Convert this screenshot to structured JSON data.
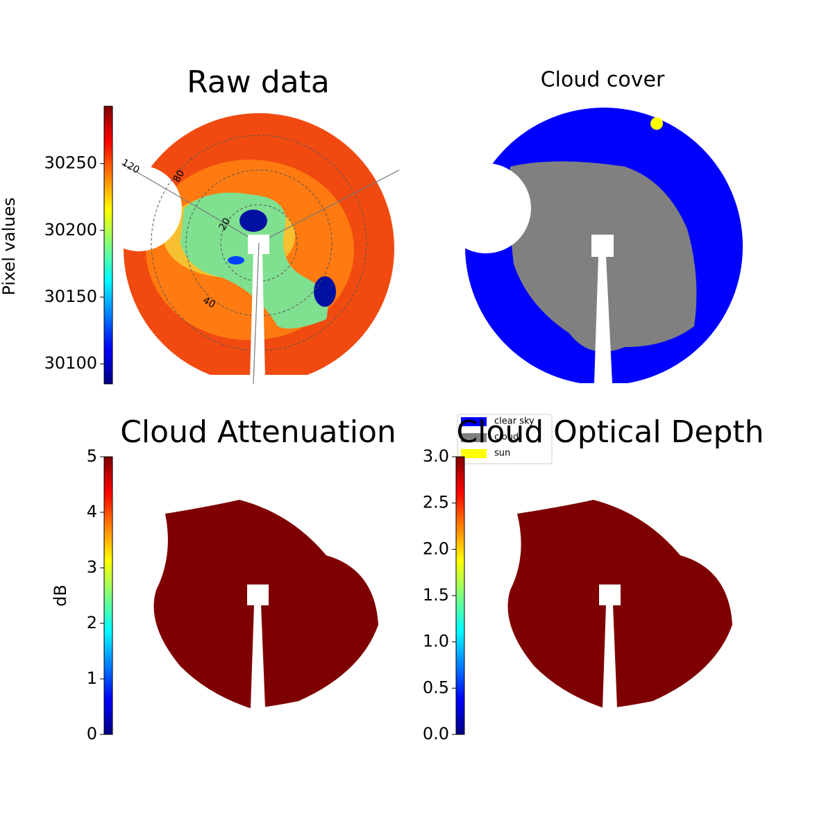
{
  "chart_data": [
    {
      "type": "image",
      "title": "Raw data",
      "colorbar": {
        "label": "Pixel values",
        "lim": [
          30085,
          30293
        ],
        "ticks": [
          30100,
          30150,
          30200,
          30250
        ]
      },
      "polar_labels": [
        "120",
        "80",
        "20",
        "40"
      ]
    },
    {
      "type": "image",
      "title": "Cloud cover",
      "series": [
        {
          "name": "clear sky",
          "color": "#0000ff"
        },
        {
          "name": "cloud",
          "color": "#808080"
        },
        {
          "name": "sun",
          "color": "#ffff00"
        }
      ]
    },
    {
      "type": "image",
      "title": "Cloud Attenuation",
      "colorbar": {
        "label": "dB",
        "lim": [
          0,
          5
        ],
        "ticks": [
          0,
          1,
          2,
          3,
          4,
          5
        ]
      }
    },
    {
      "type": "image",
      "title": "Cloud Optical Depth",
      "colorbar": {
        "lim": [
          0,
          3
        ],
        "ticks": [
          {
            "value": 0,
            "label": "0.0"
          },
          0.5,
          {
            "value": 1,
            "label": "1.0"
          },
          1.5,
          {
            "value": 2,
            "label": "2.0"
          },
          2.5,
          {
            "value": 3,
            "label": "3.0"
          }
        ]
      }
    }
  ]
}
